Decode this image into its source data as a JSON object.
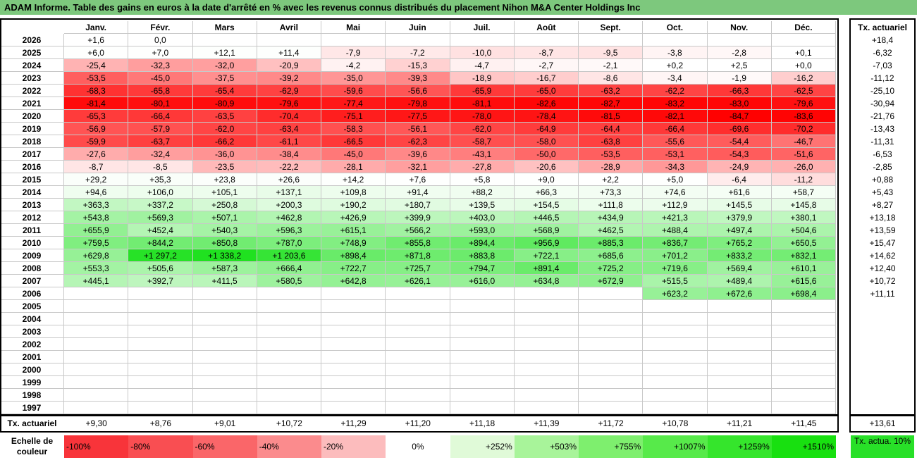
{
  "title": "ADAM Informe. Table des gains en euros à la date d'arrêté en % avec les revenus connus distribués du placement Nihon M&A Center Holdings Inc",
  "months": [
    "Janv.",
    "Févr.",
    "Mars",
    "Avril",
    "Mai",
    "Juin",
    "Juil.",
    "Août",
    "Sept.",
    "Oct.",
    "Nov.",
    "Déc."
  ],
  "rate_header": "Tx. actuariel",
  "rows": [
    {
      "year": "2026",
      "values": [
        "+1,6",
        "0,0",
        "",
        "",
        "",
        "",
        "",
        "",
        "",
        "",
        "",
        ""
      ],
      "rate": "+18,4"
    },
    {
      "year": "2025",
      "values": [
        "+6,0",
        "+7,0",
        "+12,1",
        "+11,4",
        "-7,9",
        "-7,2",
        "-10,0",
        "-8,7",
        "-9,5",
        "-3,8",
        "-2,8",
        "+0,1"
      ],
      "rate": "-6,32"
    },
    {
      "year": "2024",
      "values": [
        "-25,4",
        "-32,3",
        "-32,0",
        "-20,9",
        "-4,2",
        "-15,3",
        "-4,7",
        "-2,7",
        "-2,1",
        "+0,2",
        "+2,5",
        "+0,0"
      ],
      "rate": "-7,03"
    },
    {
      "year": "2023",
      "values": [
        "-53,5",
        "-45,0",
        "-37,5",
        "-39,2",
        "-35,0",
        "-39,3",
        "-18,9",
        "-16,7",
        "-8,6",
        "-3,4",
        "-1,9",
        "-16,2"
      ],
      "rate": "-11,12"
    },
    {
      "year": "2022",
      "values": [
        "-68,3",
        "-65,8",
        "-65,4",
        "-62,9",
        "-59,6",
        "-56,6",
        "-65,9",
        "-65,0",
        "-63,2",
        "-62,2",
        "-66,3",
        "-62,5"
      ],
      "rate": "-25,10"
    },
    {
      "year": "2021",
      "values": [
        "-81,4",
        "-80,1",
        "-80,9",
        "-79,6",
        "-77,4",
        "-79,8",
        "-81,1",
        "-82,6",
        "-82,7",
        "-83,2",
        "-83,0",
        "-79,6"
      ],
      "rate": "-30,94"
    },
    {
      "year": "2020",
      "values": [
        "-65,3",
        "-66,4",
        "-63,5",
        "-70,4",
        "-75,1",
        "-77,5",
        "-78,0",
        "-78,4",
        "-81,5",
        "-82,1",
        "-84,7",
        "-83,6"
      ],
      "rate": "-21,76"
    },
    {
      "year": "2019",
      "values": [
        "-56,9",
        "-57,9",
        "-62,0",
        "-63,4",
        "-58,3",
        "-56,1",
        "-62,0",
        "-64,9",
        "-64,4",
        "-66,4",
        "-69,6",
        "-70,2"
      ],
      "rate": "-13,43"
    },
    {
      "year": "2018",
      "values": [
        "-59,9",
        "-63,7",
        "-66,2",
        "-61,1",
        "-66,5",
        "-62,3",
        "-58,7",
        "-58,0",
        "-63,8",
        "-55,6",
        "-54,4",
        "-46,7"
      ],
      "rate": "-11,31"
    },
    {
      "year": "2017",
      "values": [
        "-27,6",
        "-32,4",
        "-36,0",
        "-38,4",
        "-45,0",
        "-39,6",
        "-43,1",
        "-50,0",
        "-53,5",
        "-53,1",
        "-54,3",
        "-51,6"
      ],
      "rate": "-6,53"
    },
    {
      "year": "2016",
      "values": [
        "-8,7",
        "-8,5",
        "-23,5",
        "-22,2",
        "-28,1",
        "-32,1",
        "-27,8",
        "-20,6",
        "-28,9",
        "-34,3",
        "-24,9",
        "-26,0"
      ],
      "rate": "-2,85"
    },
    {
      "year": "2015",
      "values": [
        "+29,2",
        "+35,3",
        "+23,8",
        "+26,6",
        "+14,2",
        "+7,6",
        "+5,8",
        "+9,0",
        "+2,2",
        "+5,0",
        "-6,4",
        "-11,2"
      ],
      "rate": "+0,88"
    },
    {
      "year": "2014",
      "values": [
        "+94,6",
        "+106,0",
        "+105,1",
        "+137,1",
        "+109,8",
        "+91,4",
        "+88,2",
        "+66,3",
        "+73,3",
        "+74,6",
        "+61,6",
        "+58,7"
      ],
      "rate": "+5,43"
    },
    {
      "year": "2013",
      "values": [
        "+363,3",
        "+337,2",
        "+250,8",
        "+200,3",
        "+190,2",
        "+180,7",
        "+139,5",
        "+154,5",
        "+111,8",
        "+112,9",
        "+145,5",
        "+145,8"
      ],
      "rate": "+8,27"
    },
    {
      "year": "2012",
      "values": [
        "+543,8",
        "+569,3",
        "+507,1",
        "+462,8",
        "+426,9",
        "+399,9",
        "+403,0",
        "+446,5",
        "+434,9",
        "+421,3",
        "+379,9",
        "+380,1"
      ],
      "rate": "+13,18"
    },
    {
      "year": "2011",
      "values": [
        "+655,9",
        "+452,4",
        "+540,3",
        "+596,3",
        "+615,1",
        "+566,2",
        "+593,0",
        "+568,9",
        "+462,5",
        "+488,4",
        "+497,4",
        "+504,6"
      ],
      "rate": "+13,59"
    },
    {
      "year": "2010",
      "values": [
        "+759,5",
        "+844,2",
        "+850,8",
        "+787,0",
        "+748,9",
        "+855,8",
        "+894,4",
        "+956,9",
        "+885,3",
        "+836,7",
        "+765,2",
        "+650,5"
      ],
      "rate": "+15,47"
    },
    {
      "year": "2009",
      "values": [
        "+629,8",
        "+1 297,2",
        "+1 338,2",
        "+1 203,6",
        "+898,4",
        "+871,8",
        "+883,8",
        "+722,1",
        "+685,6",
        "+701,2",
        "+833,2",
        "+832,1"
      ],
      "rate": "+14,62"
    },
    {
      "year": "2008",
      "values": [
        "+553,3",
        "+505,6",
        "+587,3",
        "+666,4",
        "+722,7",
        "+725,7",
        "+794,7",
        "+891,4",
        "+725,2",
        "+719,6",
        "+569,4",
        "+610,1"
      ],
      "rate": "+12,40"
    },
    {
      "year": "2007",
      "values": [
        "+445,1",
        "+392,7",
        "+411,5",
        "+580,5",
        "+642,8",
        "+626,1",
        "+616,0",
        "+634,8",
        "+672,9",
        "+515,5",
        "+489,4",
        "+615,6"
      ],
      "rate": "+10,72"
    },
    {
      "year": "2006",
      "values": [
        "",
        "",
        "",
        "",
        "",
        "",
        "",
        "",
        "",
        "+623,2",
        "+672,6",
        "+698,4"
      ],
      "rate": "+11,11"
    },
    {
      "year": "2005",
      "values": [
        "",
        "",
        "",
        "",
        "",
        "",
        "",
        "",
        "",
        "",
        "",
        ""
      ],
      "rate": ""
    },
    {
      "year": "2004",
      "values": [
        "",
        "",
        "",
        "",
        "",
        "",
        "",
        "",
        "",
        "",
        "",
        ""
      ],
      "rate": ""
    },
    {
      "year": "2003",
      "values": [
        "",
        "",
        "",
        "",
        "",
        "",
        "",
        "",
        "",
        "",
        "",
        ""
      ],
      "rate": ""
    },
    {
      "year": "2002",
      "values": [
        "",
        "",
        "",
        "",
        "",
        "",
        "",
        "",
        "",
        "",
        "",
        ""
      ],
      "rate": ""
    },
    {
      "year": "2001",
      "values": [
        "",
        "",
        "",
        "",
        "",
        "",
        "",
        "",
        "",
        "",
        "",
        ""
      ],
      "rate": ""
    },
    {
      "year": "2000",
      "values": [
        "",
        "",
        "",
        "",
        "",
        "",
        "",
        "",
        "",
        "",
        "",
        ""
      ],
      "rate": ""
    },
    {
      "year": "1999",
      "values": [
        "",
        "",
        "",
        "",
        "",
        "",
        "",
        "",
        "",
        "",
        "",
        ""
      ],
      "rate": ""
    },
    {
      "year": "1998",
      "values": [
        "",
        "",
        "",
        "",
        "",
        "",
        "",
        "",
        "",
        "",
        "",
        ""
      ],
      "rate": ""
    },
    {
      "year": "1997",
      "values": [
        "",
        "",
        "",
        "",
        "",
        "",
        "",
        "",
        "",
        "",
        "",
        ""
      ],
      "rate": ""
    }
  ],
  "summary": {
    "label": "Tx. actuariel",
    "values": [
      "+9,30",
      "+8,76",
      "+9,01",
      "+10,72",
      "+11,29",
      "+11,20",
      "+11,18",
      "+11,39",
      "+11,72",
      "+10,78",
      "+11,21",
      "+11,45"
    ],
    "total": "+13,61"
  },
  "legend": {
    "label": "Echelle de couleur",
    "steps": [
      {
        "text": "-100%",
        "color": "#f8343a"
      },
      {
        "text": "-80%",
        "color": "#f94e52"
      },
      {
        "text": "-60%",
        "color": "#fa6669"
      },
      {
        "text": "-40%",
        "color": "#fb8b8d"
      },
      {
        "text": "-20%",
        "color": "#fcbcbd"
      },
      {
        "text": "0%",
        "color": "#ffffff"
      },
      {
        "text": "+252%",
        "color": "#e0fad8"
      },
      {
        "text": "+503%",
        "color": "#a8f49a"
      },
      {
        "text": "+755%",
        "color": "#7eef6e"
      },
      {
        "text": "+1007%",
        "color": "#57ea4a"
      },
      {
        "text": "+1259%",
        "color": "#35e52c"
      },
      {
        "text": "+1510%",
        "color": "#18e010"
      }
    ],
    "rate_label": "Tx. actua. 10%",
    "rate_color": "#28e028"
  }
}
